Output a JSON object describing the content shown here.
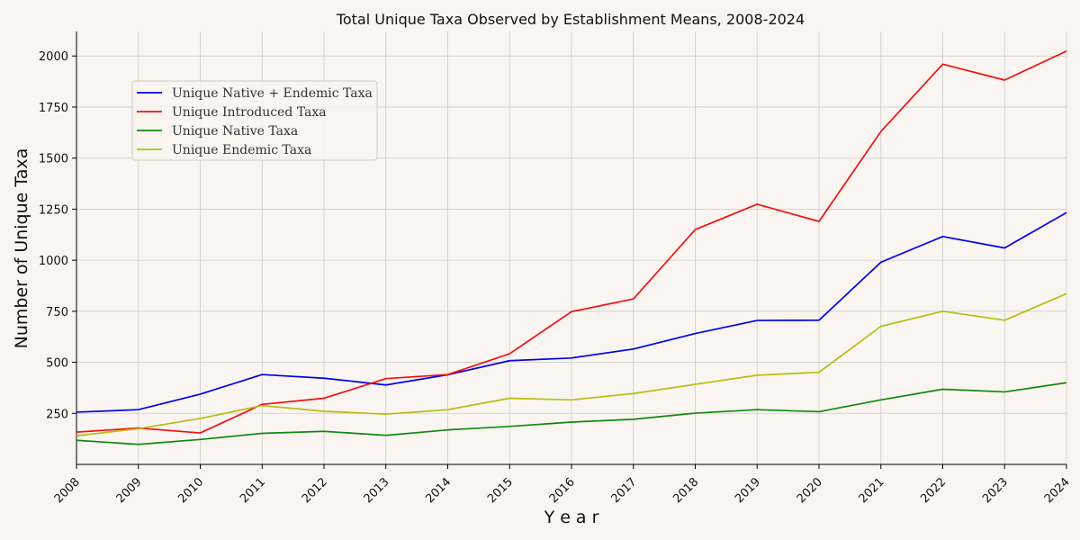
{
  "chart_data": {
    "type": "line",
    "title": "Total Unique Taxa Observed by Establishment Means, 2008-2024",
    "xlabel": "Y e a r",
    "ylabel": "Number of Unique Taxa",
    "x": [
      2008,
      2009,
      2010,
      2011,
      2012,
      2013,
      2014,
      2015,
      2016,
      2017,
      2018,
      2019,
      2020,
      2021,
      2022,
      2023,
      2024
    ],
    "xlim": [
      2008,
      2024
    ],
    "ylim": [
      0,
      2120
    ],
    "yticks": [
      250,
      500,
      750,
      1000,
      1250,
      1500,
      1750,
      2000
    ],
    "grid": true,
    "legend_position": "upper-left",
    "series": [
      {
        "name": "Unique Native + Endemic Taxa",
        "color": "#0000ee",
        "values": [
          256,
          268,
          344,
          440,
          422,
          389,
          439,
          508,
          521,
          565,
          641,
          705,
          706,
          990,
          1116,
          1060,
          1233
        ]
      },
      {
        "name": "Unique Introduced Taxa",
        "color": "#ee1111",
        "values": [
          158,
          178,
          154,
          294,
          324,
          420,
          440,
          542,
          748,
          810,
          1150,
          1274,
          1190,
          1630,
          1960,
          1882,
          2024
        ]
      },
      {
        "name": "Unique Native Taxa",
        "color": "#118811",
        "values": [
          118,
          98,
          122,
          152,
          162,
          142,
          169,
          186,
          207,
          221,
          251,
          268,
          258,
          316,
          368,
          355,
          400
        ]
      },
      {
        "name": "Unique Endemic Taxa",
        "color": "#bbbb11",
        "values": [
          140,
          175,
          225,
          288,
          260,
          246,
          268,
          324,
          316,
          347,
          392,
          437,
          451,
          676,
          750,
          706,
          836
        ]
      }
    ]
  }
}
